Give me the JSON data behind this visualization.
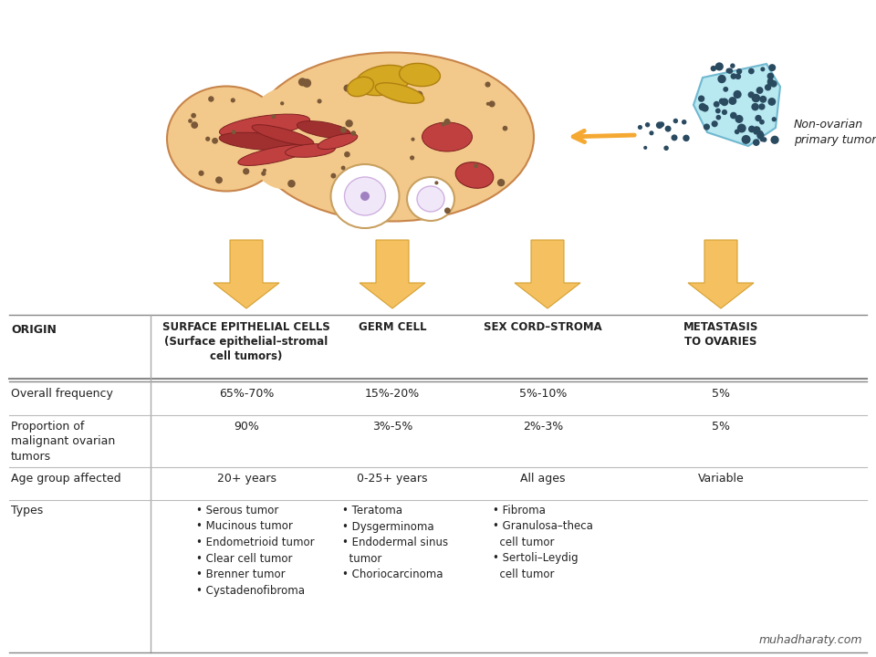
{
  "bg_color": "#ffffff",
  "arrow_color": "#F5A832",
  "table_header_row": [
    "ORIGIN",
    "SURFACE EPITHELIAL CELLS\n(Surface epithelial–stromal\ncell tumors)",
    "GERM CELL",
    "SEX CORD–STROMA",
    "METASTASIS\nTO OVARIES"
  ],
  "table_rows": [
    {
      "label": "Overall frequency",
      "cols": [
        "65%-70%",
        "15%-20%",
        "5%-10%",
        "5%"
      ]
    },
    {
      "label": "Proportion of\nmalignant ovarian\ntumors",
      "cols": [
        "90%",
        "3%-5%",
        "2%-3%",
        "5%"
      ]
    },
    {
      "label": "Age group affected",
      "cols": [
        "20+ years",
        "0-25+ years",
        "All ages",
        "Variable"
      ]
    },
    {
      "label": "Types",
      "cols": [
        "• Serous tumor\n• Mucinous tumor\n• Endometrioid tumor\n• Clear cell tumor\n• Brenner tumor\n• Cystadenofibroma",
        "• Teratoma\n• Dysgerminoma\n• Endodermal sinus\n  tumor\n• Choriocarcinoma",
        "• Fibroma\n• Granulosa–theca\n  cell tumor\n• Sertoli–Leydig\n  cell tumor",
        ""
      ]
    }
  ],
  "watermark": "muhadharaty.com",
  "non_ovarian_label": "Non-ovarian\nprimary tumor"
}
